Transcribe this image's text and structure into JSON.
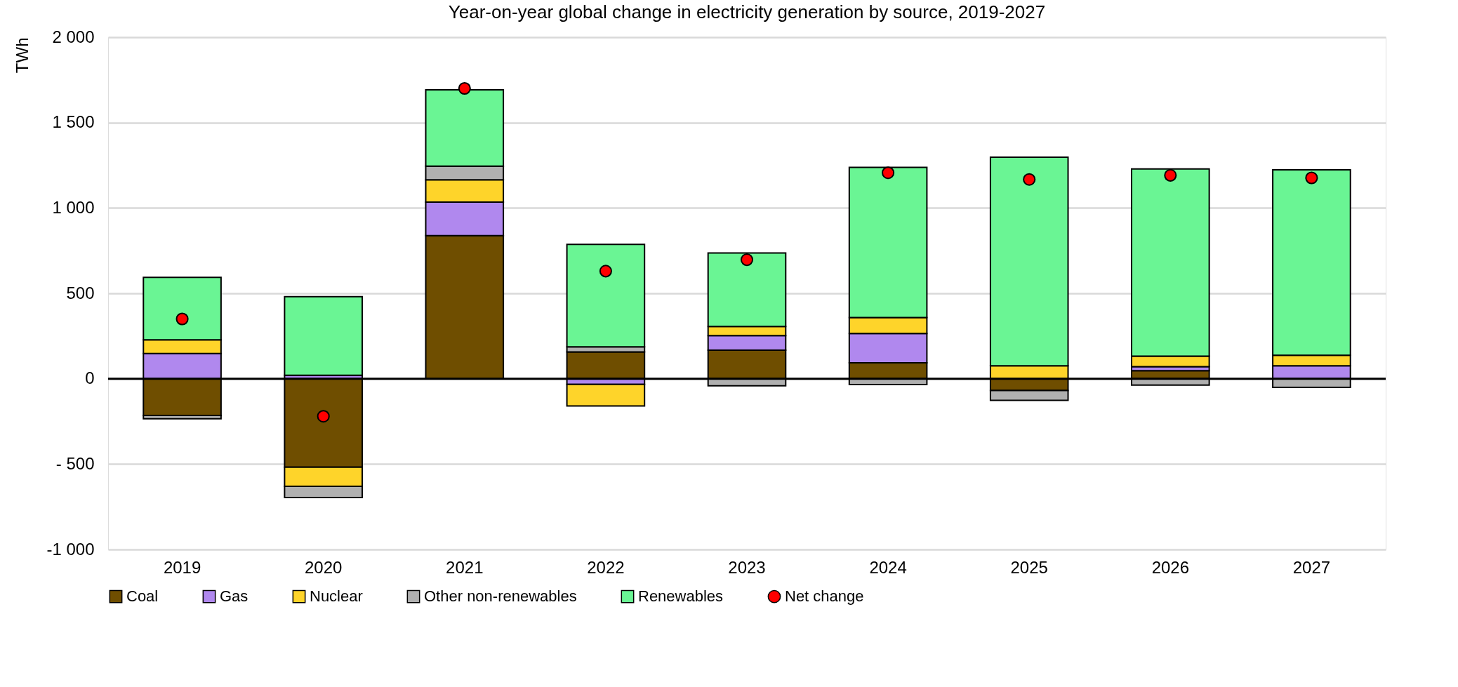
{
  "chart_data": {
    "type": "bar",
    "title": "Year-on-year global change in electricity generation by source, 2019-2027",
    "ylabel": "TWh",
    "categories": [
      "2019",
      "2020",
      "2021",
      "2022",
      "2023",
      "2024",
      "2025",
      "2026",
      "2027"
    ],
    "stacked": true,
    "series": [
      {
        "name": "Coal",
        "color": "#6f4e00",
        "values": [
          -215,
          -518,
          838,
          157,
          167,
          93,
          -69,
          47,
          null
        ]
      },
      {
        "name": "Gas",
        "color": "#b088ee",
        "values": [
          148,
          20,
          196,
          -33,
          85,
          172,
          0,
          24,
          76
        ]
      },
      {
        "name": "Nuclear",
        "color": "#fed42a",
        "values": [
          80,
          -112,
          131,
          -127,
          54,
          93,
          76,
          61,
          61
        ]
      },
      {
        "name": "Other non-renewables",
        "color": "#b0b0b0",
        "values": [
          -20,
          -66,
          80,
          30,
          -41,
          -34,
          -58,
          -37,
          -51
        ]
      },
      {
        "name": "Renewables",
        "color": "#6af594",
        "values": [
          365,
          460,
          447,
          600,
          430,
          880,
          1221,
          1096,
          1086
        ]
      },
      {
        "name": "Net change",
        "type": "scatter",
        "color": "#ff0000",
        "values": [
          350,
          -220,
          1700,
          630,
          697,
          1206,
          1167,
          1191,
          1176
        ]
      }
    ],
    "ylim": [
      -1000,
      2000
    ],
    "yticks": [
      {
        "value": -1000,
        "label": "-1 000"
      },
      {
        "value": -500,
        "label": "- 500"
      },
      0,
      500,
      {
        "value": 1000,
        "label": "1 000"
      },
      {
        "value": 1500,
        "label": "1 500"
      },
      {
        "value": 2000,
        "label": "2 000"
      }
    ],
    "ref_lines": [
      {
        "axis": "y",
        "value": 0,
        "color": "#000000"
      }
    ],
    "grid": "y",
    "legend": "bottom",
    "marker": "circle"
  }
}
